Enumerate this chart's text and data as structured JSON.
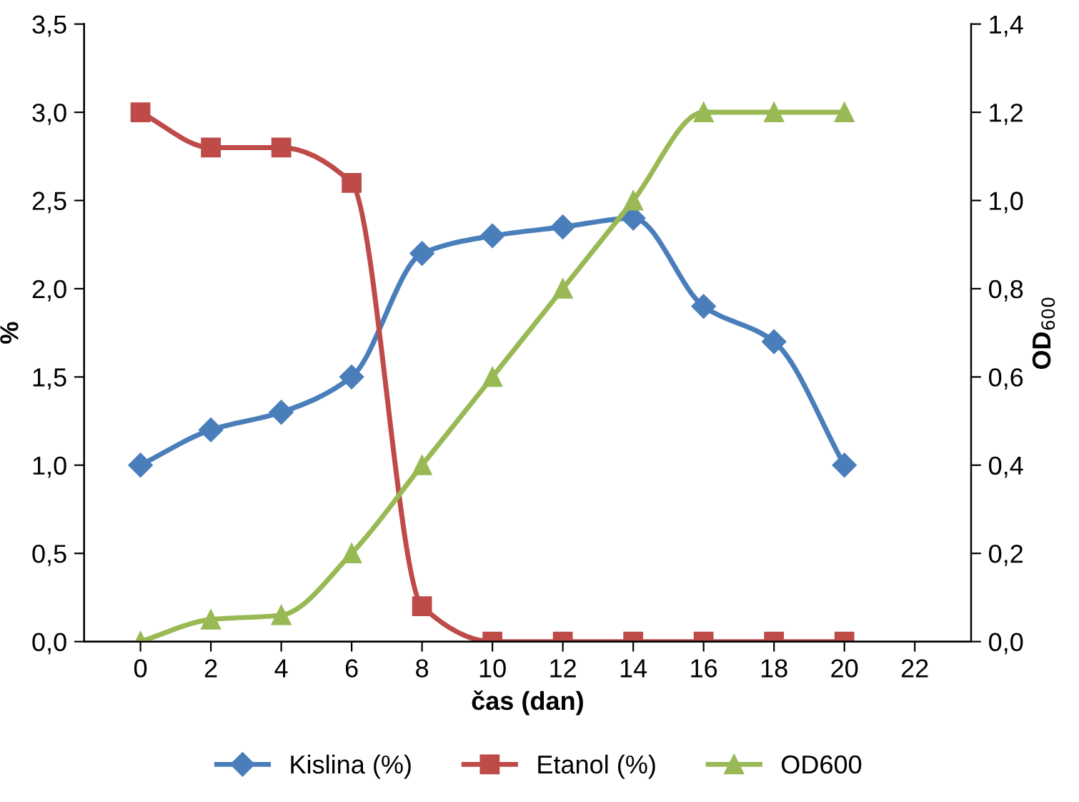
{
  "chart_data": {
    "type": "line",
    "xlabel": "čas (dan)",
    "ylabel": "%",
    "y2label": "OD$_{600}$",
    "x": [
      0,
      2,
      4,
      6,
      8,
      10,
      12,
      14,
      16,
      18,
      20
    ],
    "xlim": [
      -1.6,
      23.6
    ],
    "xticks": [
      0,
      2,
      4,
      6,
      8,
      10,
      12,
      14,
      16,
      18,
      20,
      22
    ],
    "ylim": [
      0,
      3.5
    ],
    "yticks": [
      {
        "value": 0,
        "label": "0,0"
      },
      {
        "value": 0.5,
        "label": "0,5"
      },
      {
        "value": 1,
        "label": "1,0"
      },
      {
        "value": 1.5,
        "label": "1,5"
      },
      {
        "value": 2,
        "label": "2,0"
      },
      {
        "value": 2.5,
        "label": "2,5"
      },
      {
        "value": 3,
        "label": "3,0"
      },
      {
        "value": 3.5,
        "label": "3,5"
      }
    ],
    "y2lim": [
      0,
      1.4
    ],
    "y2ticks": [
      {
        "value": 0,
        "label": "0,0"
      },
      {
        "value": 0.2,
        "label": "0,2"
      },
      {
        "value": 0.4,
        "label": "0,4"
      },
      {
        "value": 0.6,
        "label": "0,6"
      },
      {
        "value": 0.8,
        "label": "0,8"
      },
      {
        "value": 1,
        "label": "1,0"
      },
      {
        "value": 1.2,
        "label": "1,2"
      },
      {
        "value": 1.4,
        "label": "1,4"
      }
    ],
    "legend": "bottom",
    "grid": false,
    "series": [
      {
        "name": "Kislina (%)",
        "color": "#4a7ebb",
        "marker": "diamond",
        "values": [
          1.0,
          1.2,
          1.3,
          1.5,
          2.2,
          2.3,
          2.35,
          2.4,
          1.9,
          1.7,
          1.0
        ]
      },
      {
        "name": "Etanol (%)",
        "color": "#be4b48",
        "marker": "square",
        "values": [
          3.0,
          2.8,
          2.8,
          2.6,
          0.2,
          0,
          0,
          0,
          0,
          0,
          0
        ]
      },
      {
        "name": "OD600",
        "color": "#98b954",
        "marker": "triangle",
        "axis": "y2",
        "values": [
          0,
          0.05,
          0.06,
          0.2,
          0.4,
          0.6,
          0.8,
          1.0,
          1.2,
          1.2,
          1.2
        ]
      }
    ]
  }
}
